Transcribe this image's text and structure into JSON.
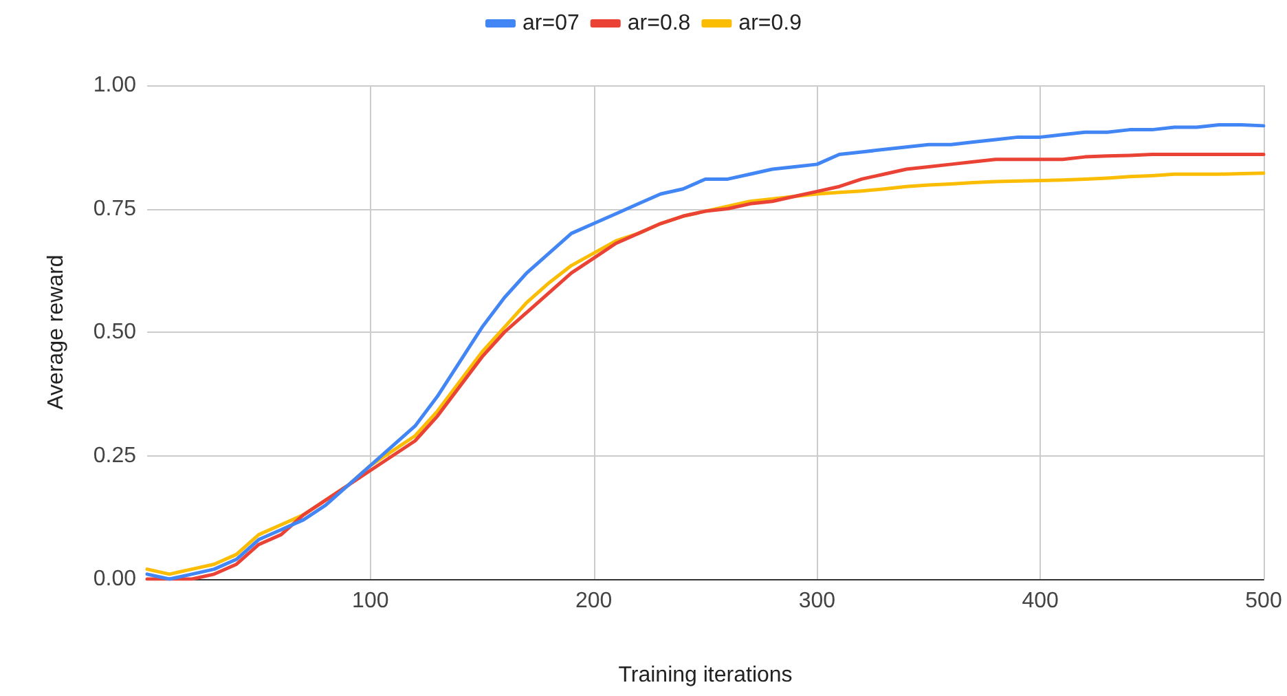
{
  "chart_data": {
    "type": "line",
    "xlabel": "Training iterations",
    "ylabel": "Average reward",
    "legend": "top",
    "grid": true,
    "marker": "none",
    "line_style": "solid",
    "x": [
      0,
      10,
      20,
      30,
      40,
      50,
      60,
      70,
      80,
      90,
      100,
      110,
      120,
      130,
      140,
      150,
      160,
      170,
      180,
      190,
      200,
      210,
      220,
      230,
      240,
      250,
      260,
      270,
      280,
      290,
      300,
      310,
      320,
      330,
      340,
      350,
      360,
      370,
      380,
      390,
      400,
      410,
      420,
      430,
      440,
      450,
      460,
      470,
      480,
      490,
      500
    ],
    "xlim": [
      0,
      500
    ],
    "xticks": [
      100,
      200,
      300,
      400,
      500
    ],
    "ylim": [
      0,
      1
    ],
    "yticks": [
      {
        "value": 0,
        "label": "0.00"
      },
      {
        "value": 0.25,
        "label": "0.25"
      },
      {
        "value": 0.5,
        "label": "0.50"
      },
      {
        "value": 0.75,
        "label": "0.75"
      },
      {
        "value": 1,
        "label": "1.00"
      }
    ],
    "series": [
      {
        "name": "ar=07",
        "color": "#4285f4",
        "values": [
          0.01,
          0.0,
          0.01,
          0.02,
          0.04,
          0.08,
          0.1,
          0.12,
          0.15,
          0.19,
          0.23,
          0.27,
          0.31,
          0.37,
          0.44,
          0.51,
          0.57,
          0.62,
          0.66,
          0.7,
          0.72,
          0.74,
          0.76,
          0.78,
          0.79,
          0.81,
          0.81,
          0.82,
          0.83,
          0.835,
          0.84,
          0.86,
          0.865,
          0.87,
          0.875,
          0.88,
          0.88,
          0.885,
          0.89,
          0.895,
          0.895,
          0.9,
          0.905,
          0.905,
          0.91,
          0.91,
          0.915,
          0.915,
          0.92,
          0.92,
          0.918
        ]
      },
      {
        "name": "ar=0.8",
        "color": "#ea4335",
        "values": [
          0.0,
          0.0,
          0.0,
          0.01,
          0.03,
          0.07,
          0.09,
          0.13,
          0.16,
          0.19,
          0.22,
          0.25,
          0.28,
          0.33,
          0.39,
          0.45,
          0.5,
          0.54,
          0.58,
          0.62,
          0.65,
          0.68,
          0.7,
          0.72,
          0.735,
          0.745,
          0.75,
          0.76,
          0.765,
          0.775,
          0.785,
          0.795,
          0.81,
          0.82,
          0.83,
          0.835,
          0.84,
          0.845,
          0.85,
          0.85,
          0.85,
          0.85,
          0.855,
          0.857,
          0.858,
          0.86,
          0.86,
          0.86,
          0.86,
          0.86,
          0.86
        ]
      },
      {
        "name": "ar=0.9",
        "color": "#fbbc04",
        "values": [
          0.02,
          0.01,
          0.02,
          0.03,
          0.05,
          0.09,
          0.11,
          0.13,
          0.16,
          0.19,
          0.23,
          0.26,
          0.29,
          0.34,
          0.4,
          0.46,
          0.51,
          0.56,
          0.6,
          0.635,
          0.66,
          0.685,
          0.7,
          0.72,
          0.735,
          0.745,
          0.755,
          0.765,
          0.77,
          0.775,
          0.78,
          0.783,
          0.786,
          0.79,
          0.795,
          0.798,
          0.8,
          0.803,
          0.805,
          0.806,
          0.807,
          0.808,
          0.81,
          0.812,
          0.815,
          0.817,
          0.82,
          0.82,
          0.82,
          0.821,
          0.822
        ]
      }
    ]
  }
}
